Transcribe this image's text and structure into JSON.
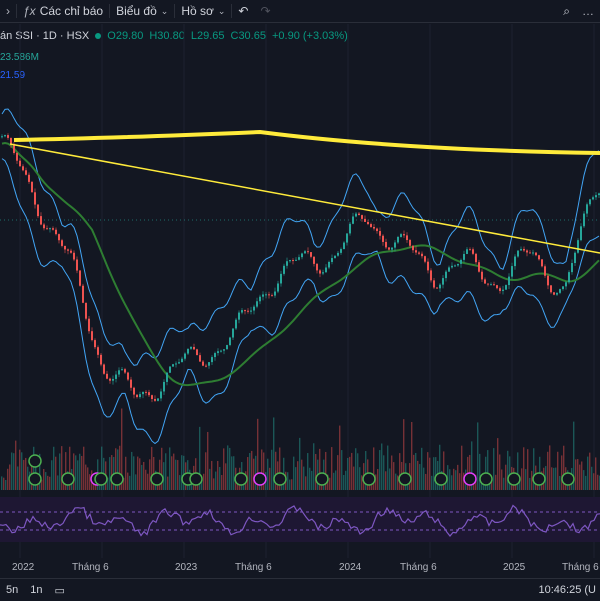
{
  "toolbar": {
    "indicators_label": "Các chỉ báo",
    "chart_label": "Biểu đồ",
    "profile_label": "Hồ sơ"
  },
  "legend": {
    "symbol": "án SSI · 1D · HSX",
    "open": "O29.80",
    "high": "H30.80",
    "low": "L29.65",
    "close": "C30.65",
    "change": "+0.90 (+3.03%)"
  },
  "volume_value": "23.586M",
  "ma_value": "21.59",
  "xaxis": {
    "labels": [
      "2022",
      "Tháng 6",
      "2023",
      "Tháng 6",
      "2024",
      "Tháng 6",
      "2025",
      "Tháng 6"
    ]
  },
  "bottom": {
    "range_5d": "5n",
    "range_1m": "1n",
    "clock": "10:46:25 (U"
  },
  "colors": {
    "background": "#131722",
    "price": "#e53935",
    "bollinger": "#42a5f5",
    "ma": "#2e7d32",
    "trendline": "#ffeb3b",
    "rsi": "#7e57c2"
  },
  "chart_data": {
    "type": "line",
    "x": [
      "2022-01",
      "2022-03",
      "2022-06",
      "2022-09",
      "2022-11",
      "2023-01",
      "2023-03",
      "2023-06",
      "2023-09",
      "2023-12",
      "2024-01",
      "2024-03",
      "2024-06",
      "2024-09",
      "2024-12",
      "2025-01",
      "2025-03",
      "2025-05",
      "2025-07"
    ],
    "series": [
      {
        "values": [
          46,
          40,
          33,
          22,
          18,
          21,
          23,
          25,
          31,
          33,
          34,
          38,
          35,
          32,
          33,
          31,
          34,
          30,
          42
        ]
      }
    ]
  }
}
